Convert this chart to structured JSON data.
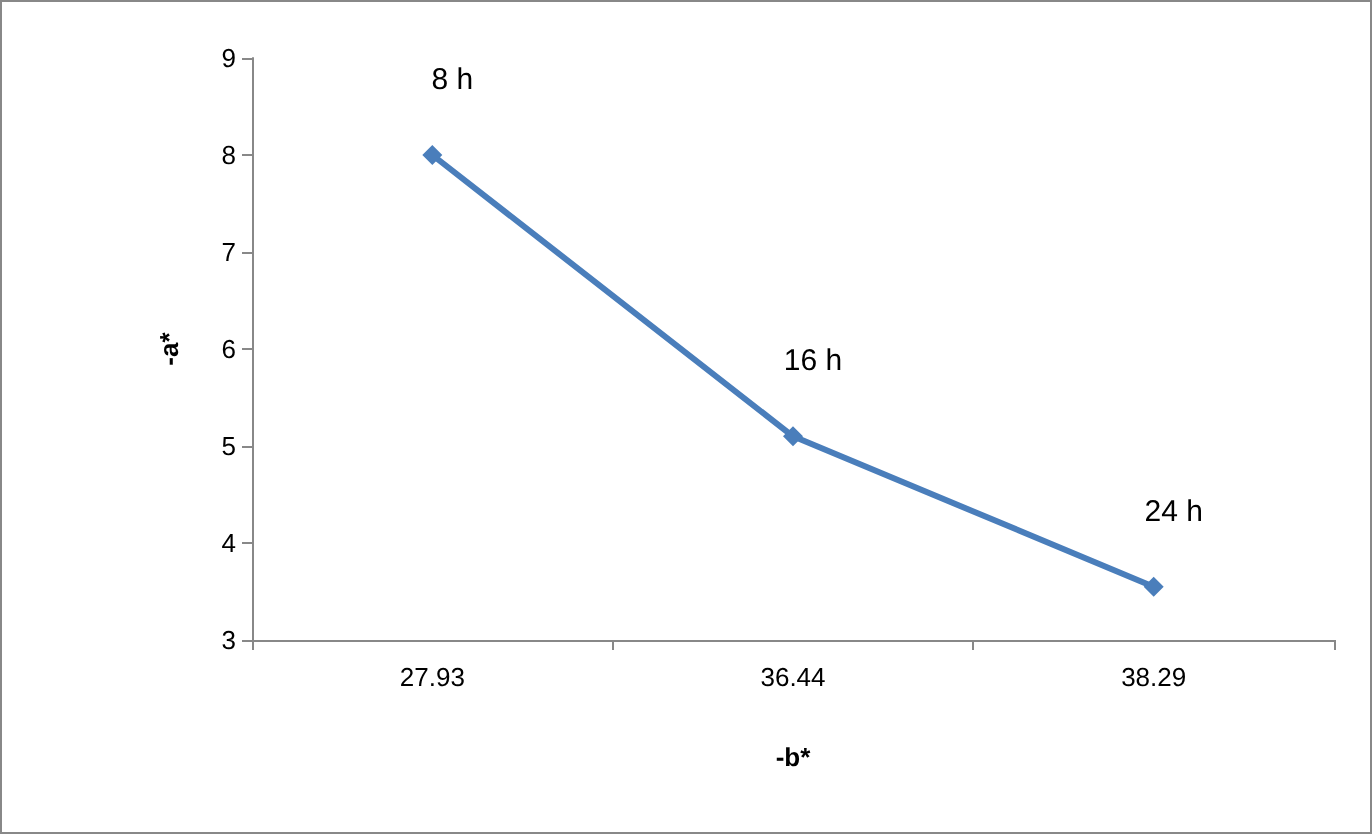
{
  "chart_data": {
    "type": "line",
    "xlabel": "-b*",
    "ylabel": "-a*",
    "categories": [
      "27.93",
      "36.44",
      "38.29"
    ],
    "series": [
      {
        "color": "#4a7ebb",
        "values": [
          8,
          5.1,
          3.55
        ]
      }
    ],
    "ylim": [
      3,
      9
    ],
    "yticks": [
      3,
      4,
      5,
      6,
      7,
      8,
      9
    ],
    "grid": false,
    "marker": "diamond",
    "line_style": "solid",
    "annotations": [
      {
        "text": "8 h",
        "x": "27.93",
        "y": 8
      },
      {
        "text": "16 h",
        "x": "36.44",
        "y": 5.1
      },
      {
        "text": "24 h",
        "x": "38.29",
        "y": 3.55
      }
    ]
  }
}
